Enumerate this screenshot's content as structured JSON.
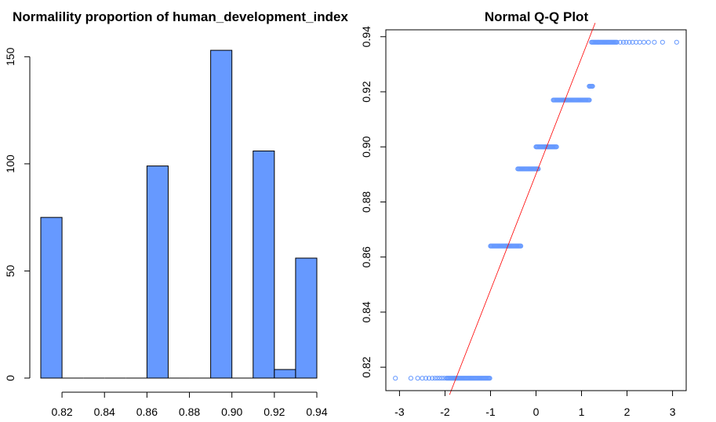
{
  "chart_data": [
    {
      "type": "bar",
      "title": "Normalility proportion of human_development_index",
      "xlabel": "",
      "ylabel": "",
      "color": "#6699ff",
      "bin_width": 0.01,
      "bins": [
        {
          "start": 0.81,
          "end": 0.82,
          "count": 75
        },
        {
          "start": 0.82,
          "end": 0.83,
          "count": 0
        },
        {
          "start": 0.83,
          "end": 0.84,
          "count": 0
        },
        {
          "start": 0.84,
          "end": 0.85,
          "count": 0
        },
        {
          "start": 0.85,
          "end": 0.86,
          "count": 0
        },
        {
          "start": 0.86,
          "end": 0.87,
          "count": 99
        },
        {
          "start": 0.87,
          "end": 0.88,
          "count": 0
        },
        {
          "start": 0.88,
          "end": 0.89,
          "count": 0
        },
        {
          "start": 0.89,
          "end": 0.9,
          "count": 153
        },
        {
          "start": 0.9,
          "end": 0.91,
          "count": 0
        },
        {
          "start": 0.91,
          "end": 0.92,
          "count": 106
        },
        {
          "start": 0.92,
          "end": 0.93,
          "count": 4
        },
        {
          "start": 0.93,
          "end": 0.94,
          "count": 56
        }
      ],
      "xlim": [
        0.81,
        0.94
      ],
      "ylim": [
        0,
        160
      ],
      "x_ticks": [
        "0.82",
        "0.84",
        "0.86",
        "0.88",
        "0.90",
        "0.92",
        "0.94"
      ],
      "y_ticks": [
        "0",
        "50",
        "100",
        "150"
      ]
    },
    {
      "type": "scatter",
      "title": "Normal Q-Q Plot",
      "xlabel": "",
      "ylabel": "",
      "color": "#6699ff",
      "line_color": "#ff0000",
      "reference_line": [
        {
          "x": -1.9,
          "y": 0.81
        },
        {
          "x": 1.3,
          "y": 0.945
        }
      ],
      "groups": [
        {
          "y": 0.816,
          "x_from": -1.97,
          "x_to": -1.0,
          "tail_x": [
            -3.09,
            -2.75,
            -2.6,
            -2.5,
            -2.42,
            -2.35,
            -2.28,
            -2.22,
            -2.17,
            -2.12,
            -2.07,
            -2.02
          ]
        },
        {
          "y": 0.864,
          "x_from": -1.0,
          "x_to": -0.32,
          "tail_x": []
        },
        {
          "y": 0.892,
          "x_from": -0.4,
          "x_to": 0.06,
          "tail_x": []
        },
        {
          "y": 0.9,
          "x_from": 0.0,
          "x_to": 0.45,
          "tail_x": []
        },
        {
          "y": 0.917,
          "x_from": 0.38,
          "x_to": 1.18,
          "tail_x": []
        },
        {
          "y": 0.922,
          "x_from": 1.17,
          "x_to": 1.25,
          "tail_x": []
        },
        {
          "y": 0.938,
          "x_from": 1.22,
          "x_to": 1.78,
          "tail_x": [
            1.85,
            1.92,
            1.98,
            2.05,
            2.12,
            2.2,
            2.28,
            2.37,
            2.47,
            2.6,
            2.78,
            3.09
          ]
        }
      ],
      "xlim": [
        -3.3,
        3.3
      ],
      "ylim": [
        0.8115,
        0.9425
      ],
      "x_ticks": [
        "-3",
        "-2",
        "-1",
        "0",
        "1",
        "2",
        "3"
      ],
      "y_ticks": [
        "0.82",
        "0.84",
        "0.86",
        "0.88",
        "0.90",
        "0.92",
        "0.94"
      ]
    }
  ]
}
